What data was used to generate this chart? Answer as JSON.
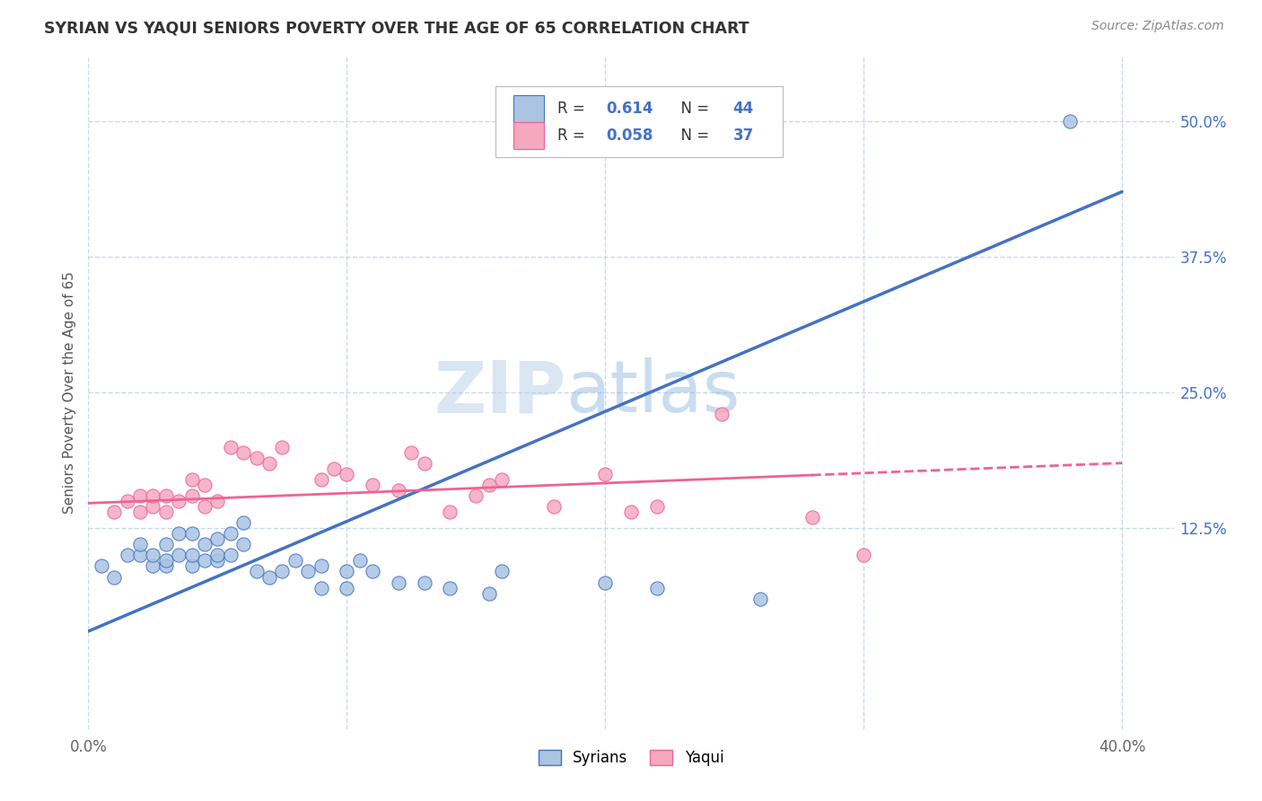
{
  "title": "SYRIAN VS YAQUI SENIORS POVERTY OVER THE AGE OF 65 CORRELATION CHART",
  "source_text": "Source: ZipAtlas.com",
  "ylabel": "Seniors Poverty Over the Age of 65",
  "xlim": [
    0.0,
    0.42
  ],
  "ylim": [
    -0.06,
    0.56
  ],
  "xtick_labels": [
    "0.0%",
    "",
    "",
    "",
    "40.0%"
  ],
  "xtick_vals": [
    0.0,
    0.1,
    0.2,
    0.3,
    0.4
  ],
  "ytick_labels": [
    "12.5%",
    "25.0%",
    "37.5%",
    "50.0%"
  ],
  "ytick_vals": [
    0.125,
    0.25,
    0.375,
    0.5
  ],
  "syrian_color": "#aac4e2",
  "yaqui_color": "#f5a8c0",
  "syrian_line_color": "#4472c4",
  "yaqui_line_color": "#f06292",
  "watermark_zip": "ZIP",
  "watermark_atlas": "atlas",
  "background_color": "#ffffff",
  "grid_color": "#c8d8ec",
  "syrian_scatter_x": [
    0.005,
    0.01,
    0.015,
    0.02,
    0.02,
    0.025,
    0.025,
    0.03,
    0.03,
    0.03,
    0.035,
    0.035,
    0.04,
    0.04,
    0.04,
    0.045,
    0.045,
    0.05,
    0.05,
    0.05,
    0.055,
    0.055,
    0.06,
    0.06,
    0.065,
    0.07,
    0.075,
    0.08,
    0.085,
    0.09,
    0.09,
    0.1,
    0.1,
    0.105,
    0.11,
    0.12,
    0.13,
    0.14,
    0.155,
    0.16,
    0.2,
    0.22,
    0.26,
    0.38
  ],
  "syrian_scatter_y": [
    0.09,
    0.08,
    0.1,
    0.1,
    0.11,
    0.09,
    0.1,
    0.09,
    0.095,
    0.11,
    0.1,
    0.12,
    0.09,
    0.1,
    0.12,
    0.095,
    0.11,
    0.095,
    0.1,
    0.115,
    0.1,
    0.12,
    0.11,
    0.13,
    0.085,
    0.08,
    0.085,
    0.095,
    0.085,
    0.07,
    0.09,
    0.07,
    0.085,
    0.095,
    0.085,
    0.075,
    0.075,
    0.07,
    0.065,
    0.085,
    0.075,
    0.07,
    0.06,
    0.5
  ],
  "yaqui_scatter_x": [
    0.01,
    0.015,
    0.02,
    0.02,
    0.025,
    0.025,
    0.03,
    0.03,
    0.035,
    0.04,
    0.04,
    0.045,
    0.045,
    0.05,
    0.055,
    0.06,
    0.065,
    0.07,
    0.075,
    0.09,
    0.095,
    0.1,
    0.11,
    0.12,
    0.125,
    0.13,
    0.14,
    0.15,
    0.155,
    0.16,
    0.18,
    0.2,
    0.21,
    0.22,
    0.245,
    0.28,
    0.3
  ],
  "yaqui_scatter_y": [
    0.14,
    0.15,
    0.14,
    0.155,
    0.145,
    0.155,
    0.14,
    0.155,
    0.15,
    0.155,
    0.17,
    0.145,
    0.165,
    0.15,
    0.2,
    0.195,
    0.19,
    0.185,
    0.2,
    0.17,
    0.18,
    0.175,
    0.165,
    0.16,
    0.195,
    0.185,
    0.14,
    0.155,
    0.165,
    0.17,
    0.145,
    0.175,
    0.14,
    0.145,
    0.23,
    0.135,
    0.1
  ],
  "syrian_trend_x": [
    0.0,
    0.4
  ],
  "syrian_trend_y": [
    0.03,
    0.435
  ],
  "yaqui_trend_x": [
    0.0,
    0.4
  ],
  "yaqui_trend_y": [
    0.148,
    0.185
  ],
  "legend_labels": [
    "Syrians",
    "Yaqui"
  ],
  "leg_R1": "0.614",
  "leg_N1": "44",
  "leg_R2": "0.058",
  "leg_N2": "37"
}
